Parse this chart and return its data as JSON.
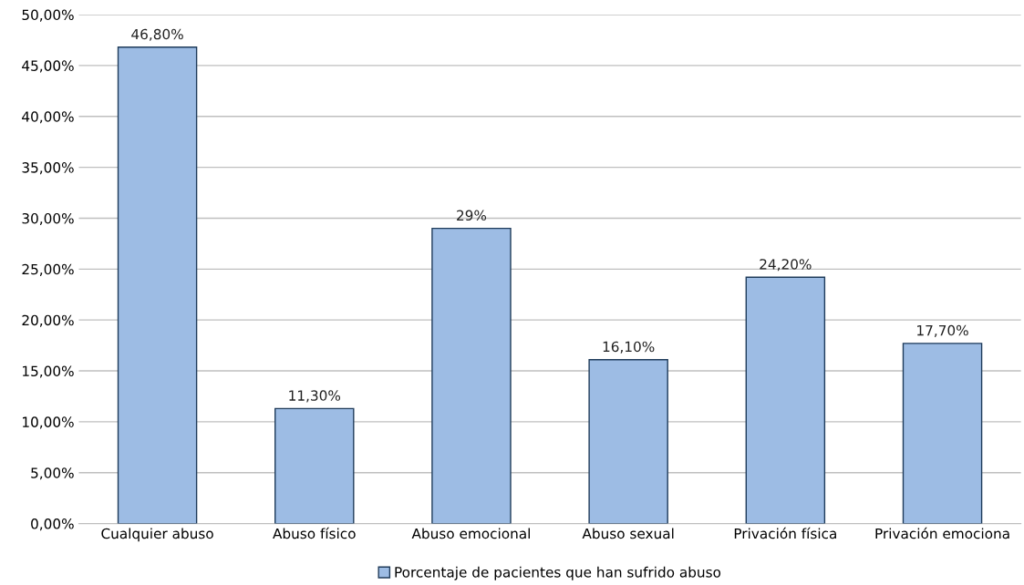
{
  "chart_data": {
    "type": "bar",
    "categories": [
      "Cualquier abuso",
      "Abuso físico",
      "Abuso emocional",
      "Abuso sexual",
      "Privación física",
      "Privación emociona"
    ],
    "series": [
      {
        "name": "Porcentaje de pacientes que han sufrido abuso",
        "color": "#9dbce4",
        "values": [
          46.8,
          11.3,
          29,
          16.1,
          24.2,
          17.7
        ],
        "value_labels": [
          "46,80%",
          "11,30%",
          "29%",
          "16,10%",
          "24,20%",
          "17,70%"
        ]
      }
    ],
    "ylim": [
      0,
      50
    ],
    "yticks": [
      {
        "value": 0,
        "label": "0,00%"
      },
      {
        "value": 5,
        "label": "5,00%"
      },
      {
        "value": 10,
        "label": "10,00%"
      },
      {
        "value": 15,
        "label": "15,00%"
      },
      {
        "value": 20,
        "label": "20,00%"
      },
      {
        "value": 25,
        "label": "25,00%"
      },
      {
        "value": 30,
        "label": "30,00%"
      },
      {
        "value": 35,
        "label": "35,00%"
      },
      {
        "value": 40,
        "label": "40,00%"
      },
      {
        "value": 45,
        "label": "45,00%"
      },
      {
        "value": 50,
        "label": "50,00%"
      }
    ],
    "grid": "y",
    "legend": "bottom"
  }
}
